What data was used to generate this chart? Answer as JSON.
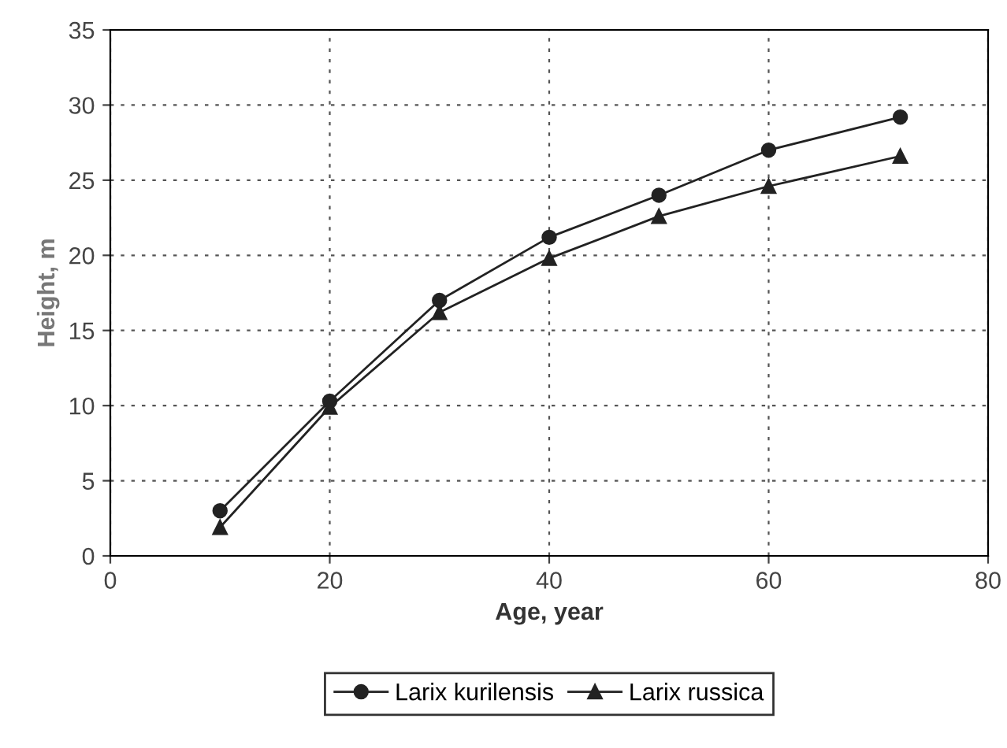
{
  "chart_data": {
    "type": "line",
    "xlabel": "Age, year",
    "ylabel": "Height, m",
    "xlim": [
      0,
      80
    ],
    "xticks": [
      0,
      20,
      40,
      60,
      80
    ],
    "ylim": [
      0,
      35
    ],
    "yticks": [
      0,
      5,
      10,
      15,
      20,
      25,
      30,
      35
    ],
    "grid": true,
    "legend": "bottom",
    "series": [
      {
        "name": "Larix kurilensis",
        "color": "#222222",
        "marker": "circle",
        "x": [
          10,
          20,
          30,
          40,
          50,
          60,
          72
        ],
        "values": [
          3.0,
          10.3,
          17.0,
          21.2,
          24.0,
          27.0,
          29.2
        ]
      },
      {
        "name": "Larix russica",
        "color": "#222222",
        "marker": "triangle",
        "x": [
          10,
          20,
          30,
          40,
          50,
          60,
          72
        ],
        "values": [
          1.9,
          9.9,
          16.2,
          19.8,
          22.6,
          24.6,
          26.6
        ]
      }
    ]
  }
}
